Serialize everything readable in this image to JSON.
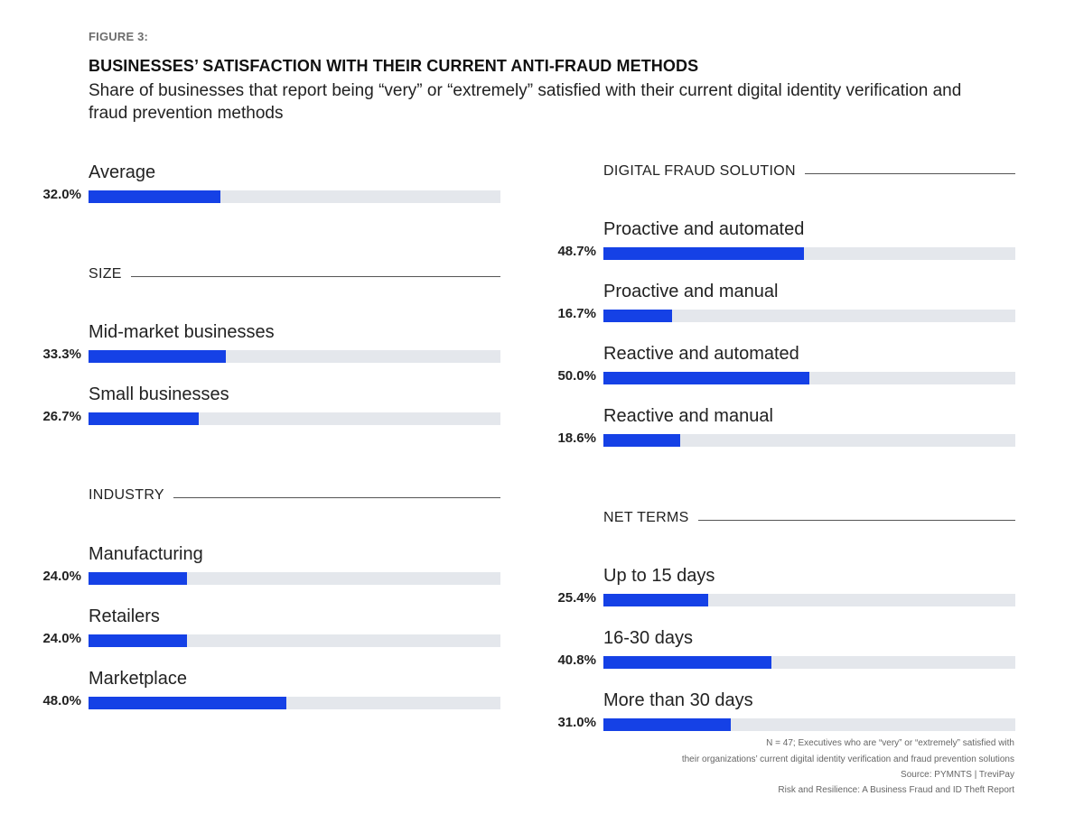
{
  "figure_label": "FIGURE 3:",
  "title": "BUSINESSES’ SATISFACTION WITH THEIR CURRENT ANTI-FRAUD METHODS",
  "subtitle": "Share of businesses that report being “very” or “extremely” satisfied with their current digital identity verification and fraud prevention methods",
  "chart_data": {
    "type": "bar",
    "orientation": "horizontal",
    "xlim": [
      0,
      100
    ],
    "unit": "%",
    "groups": [
      {
        "section": "",
        "categories": [
          "Average"
        ],
        "values": [
          32.0
        ],
        "labels": [
          "32.0%"
        ]
      },
      {
        "section": "SIZE",
        "categories": [
          "Mid-market businesses",
          "Small businesses"
        ],
        "values": [
          33.3,
          26.7
        ],
        "labels": [
          "33.3%",
          "26.7%"
        ]
      },
      {
        "section": "INDUSTRY",
        "categories": [
          "Manufacturing",
          "Retailers",
          "Marketplace"
        ],
        "values": [
          24.0,
          24.0,
          48.0
        ],
        "labels": [
          "24.0%",
          "24.0%",
          "48.0%"
        ]
      },
      {
        "section": "DIGITAL FRAUD SOLUTION",
        "categories": [
          "Proactive and automated",
          "Proactive and manual",
          "Reactive and automated",
          "Reactive and manual"
        ],
        "values": [
          48.7,
          16.7,
          50.0,
          18.6
        ],
        "labels": [
          "48.7%",
          "16.7%",
          "50.0%",
          "18.6%"
        ]
      },
      {
        "section": "NET TERMS",
        "categories": [
          "Up to 15 days",
          "16-30 days",
          "More than 30 days"
        ],
        "values": [
          25.4,
          40.8,
          31.0
        ],
        "labels": [
          "25.4%",
          "40.8%",
          "31.0%"
        ]
      }
    ]
  },
  "notes": [
    "N = 47; Executives who are “very” or “extremely” satisfied with",
    "their organizations’ current digital identity verification and fraud prevention solutions",
    "Source: PYMNTS  |  TreviPay",
    "Risk and Resilience: A Business Fraud and ID Theft Report"
  ],
  "colors": {
    "bar": "#1541e6",
    "track": "#e4e7ec"
  }
}
